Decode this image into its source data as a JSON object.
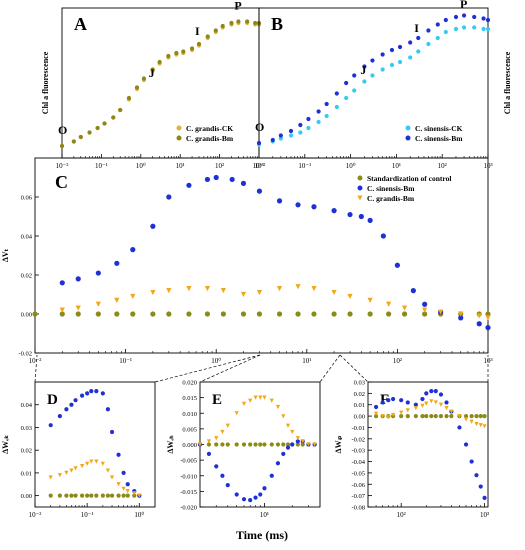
{
  "figure": {
    "x_label": "Time (ms)",
    "colors": {
      "grandis_ck": "#e0b23c",
      "grandis_bm": "#8f8616",
      "sinensis_ck": "#33ccf2",
      "sinensis_bm": "#1f30d6",
      "control": "#8b8b16",
      "grandis_bm_delta": "#f0a818",
      "sinensis_bm_delta": "#1f30d6"
    }
  },
  "chart_data": [
    {
      "id": "A",
      "type": "scatter",
      "panel_label": "A",
      "title": "",
      "xlabel": "",
      "ylabel": "Chl a fluorescence",
      "xscale": "log",
      "xlim": [
        0.01,
        1000
      ],
      "xticks": [
        0.01,
        0.1,
        1,
        10,
        100,
        1000
      ],
      "xtick_labels": [
        "10⁻²",
        "10⁻¹",
        "10⁰",
        "10¹",
        "10²",
        "10³"
      ],
      "show_yticks": false,
      "ylim": [
        0,
        100
      ],
      "legend": "bottom-right",
      "phases": [
        {
          "label": "O",
          "x": 0.01,
          "y": 12
        },
        {
          "label": "J",
          "x": 2,
          "y": 50
        },
        {
          "label": "I",
          "x": 30,
          "y": 78
        },
        {
          "label": "P",
          "x": 300,
          "y": 95
        }
      ],
      "series": [
        {
          "name": "C. grandis-CK",
          "color_key": "grandis_ck",
          "x": [
            0.01,
            0.02,
            0.03,
            0.05,
            0.08,
            0.12,
            0.2,
            0.3,
            0.5,
            0.8,
            1.2,
            2,
            3,
            5,
            8,
            12,
            20,
            30,
            50,
            80,
            120,
            200,
            300,
            500,
            800,
            1000
          ],
          "y": [
            8,
            11,
            14,
            17,
            20,
            23,
            27,
            32,
            39,
            46,
            52,
            58,
            63,
            67,
            69,
            70,
            72,
            75,
            80,
            84,
            87,
            89,
            90,
            90,
            89,
            89
          ]
        },
        {
          "name": "C. grandis-Bm",
          "color_key": "grandis_bm",
          "x": [
            0.01,
            0.02,
            0.03,
            0.05,
            0.08,
            0.12,
            0.2,
            0.3,
            0.5,
            0.8,
            1.2,
            2,
            3,
            5,
            8,
            12,
            20,
            30,
            50,
            80,
            120,
            200,
            300,
            500,
            800,
            1000
          ],
          "y": [
            8,
            11,
            14,
            17,
            20,
            23,
            27,
            32,
            40,
            47,
            53,
            59,
            64,
            68,
            70,
            71,
            73,
            76,
            81,
            85,
            88,
            90,
            91,
            91,
            90,
            90
          ]
        }
      ]
    },
    {
      "id": "B",
      "type": "scatter",
      "panel_label": "B",
      "title": "",
      "xlabel": "",
      "ylabel": "Chl a fluorescence",
      "xscale": "log",
      "xlim": [
        0.01,
        1000
      ],
      "xticks": [
        0.01,
        0.1,
        1,
        10,
        100,
        1000
      ],
      "xtick_labels": [
        "10⁻²",
        "10⁻¹",
        "10⁰",
        "10¹",
        "10²",
        "10³"
      ],
      "show_yticks": false,
      "ylim": [
        0,
        100
      ],
      "legend": "bottom-right",
      "phases": [
        {
          "label": "O",
          "x": 0.01,
          "y": 14
        },
        {
          "label": "J",
          "x": 2,
          "y": 52
        },
        {
          "label": "I",
          "x": 30,
          "y": 80
        },
        {
          "label": "P",
          "x": 300,
          "y": 96
        }
      ],
      "series": [
        {
          "name": "C. sinensis-CK",
          "color_key": "sinensis_ck",
          "x": [
            0.01,
            0.02,
            0.03,
            0.05,
            0.08,
            0.12,
            0.2,
            0.3,
            0.5,
            0.8,
            1.2,
            2,
            3,
            5,
            8,
            12,
            20,
            30,
            50,
            80,
            120,
            200,
            300,
            500,
            800,
            1000
          ],
          "y": [
            9,
            11,
            13,
            15,
            17,
            20,
            24,
            28,
            34,
            40,
            45,
            51,
            55,
            59,
            62,
            64,
            67,
            71,
            76,
            80,
            84,
            86,
            87,
            87,
            86,
            86
          ]
        },
        {
          "name": "C. sinensis-Bm",
          "color_key": "sinensis_bm",
          "x": [
            0.01,
            0.02,
            0.03,
            0.05,
            0.08,
            0.12,
            0.2,
            0.3,
            0.5,
            0.8,
            1.2,
            2,
            3,
            5,
            8,
            12,
            20,
            30,
            50,
            80,
            120,
            200,
            300,
            500,
            800,
            1000
          ],
          "y": [
            10,
            12,
            15,
            18,
            22,
            26,
            31,
            36,
            43,
            50,
            55,
            61,
            65,
            69,
            72,
            74,
            77,
            80,
            85,
            89,
            92,
            94,
            95,
            94,
            93,
            92
          ]
        }
      ]
    },
    {
      "id": "C",
      "type": "scatter",
      "panel_label": "C",
      "title": "",
      "xlabel": "",
      "ylabel": "ΔVₜ",
      "xscale": "log",
      "xlim": [
        0.01,
        1000
      ],
      "xticks": [
        0.01,
        0.1,
        1,
        10,
        100,
        1000
      ],
      "xtick_labels": [
        "10⁻²",
        "10⁻¹",
        "10⁰",
        "10¹",
        "10²",
        "10³"
      ],
      "ylim": [
        -0.02,
        0.08
      ],
      "yticks": [
        -0.02,
        0.0,
        0.02,
        0.04,
        0.06
      ],
      "ytick_labels": [
        "-0.02",
        "0.00",
        "0.02",
        "0.04",
        "0.06"
      ],
      "legend": "top-right",
      "series": [
        {
          "name": "Standardization of control",
          "color_key": "control",
          "x": [
            0.01,
            0.02,
            0.03,
            0.05,
            0.08,
            0.12,
            0.2,
            0.3,
            0.5,
            0.8,
            1.2,
            2,
            3,
            5,
            8,
            12,
            20,
            30,
            50,
            80,
            120,
            200,
            300,
            500,
            800,
            1000
          ],
          "y": [
            0,
            0,
            0,
            0,
            0,
            0,
            0,
            0,
            0,
            0,
            0,
            0,
            0,
            0,
            0,
            0,
            0,
            0,
            0,
            0,
            0,
            0,
            0,
            0,
            0,
            0
          ]
        },
        {
          "name": "C. sinensis-Bm",
          "color_key": "sinensis_bm_delta",
          "x": [
            0.02,
            0.03,
            0.05,
            0.08,
            0.12,
            0.2,
            0.3,
            0.5,
            0.8,
            1.0,
            1.5,
            2,
            3,
            5,
            8,
            12,
            20,
            30,
            40,
            50,
            70,
            100,
            150,
            200,
            300,
            500,
            800,
            1000
          ],
          "y": [
            0.016,
            0.018,
            0.021,
            0.026,
            0.033,
            0.045,
            0.06,
            0.066,
            0.069,
            0.07,
            0.069,
            0.067,
            0.063,
            0.058,
            0.056,
            0.055,
            0.053,
            0.051,
            0.05,
            0.048,
            0.04,
            0.025,
            0.012,
            0.005,
            0.001,
            -0.002,
            -0.005,
            -0.007
          ]
        },
        {
          "name": "C. grandis-Bm",
          "color_key": "grandis_bm_delta",
          "x": [
            0.02,
            0.03,
            0.05,
            0.08,
            0.12,
            0.2,
            0.3,
            0.5,
            0.8,
            1.2,
            2,
            3,
            5,
            8,
            12,
            20,
            30,
            50,
            80,
            120,
            200,
            300,
            500,
            800,
            1000
          ],
          "y": [
            0.002,
            0.003,
            0.005,
            0.007,
            0.009,
            0.011,
            0.012,
            0.013,
            0.013,
            0.012,
            0.01,
            0.011,
            0.013,
            0.014,
            0.013,
            0.011,
            0.009,
            0.007,
            0.005,
            0.003,
            0.002,
            0.001,
            0.0,
            -0.001,
            -0.002
          ]
        }
      ]
    },
    {
      "id": "D",
      "type": "scatter",
      "panel_label": "D",
      "title": "",
      "xlabel": "",
      "ylabel": "ΔWₒₖ",
      "xscale": "log",
      "xlim": [
        0.01,
        2
      ],
      "xticks": [
        0.01,
        0.1,
        1
      ],
      "xtick_labels": [
        "10⁻²",
        "10⁻¹",
        "10⁰"
      ],
      "ylim": [
        -0.005,
        0.05
      ],
      "yticks": [
        0.0,
        0.01,
        0.02,
        0.03,
        0.04
      ],
      "ytick_labels": [
        "0.00",
        "0.01",
        "0.02",
        "0.03",
        "0.04"
      ],
      "series": [
        {
          "name": "Standardization of control",
          "color_key": "control",
          "x": [
            0.02,
            0.03,
            0.04,
            0.05,
            0.06,
            0.08,
            0.1,
            0.12,
            0.15,
            0.2,
            0.25,
            0.3,
            0.4,
            0.5,
            0.6,
            0.8,
            1.0
          ],
          "y": [
            0,
            0,
            0,
            0,
            0,
            0,
            0,
            0,
            0,
            0,
            0,
            0,
            0,
            0,
            0,
            0,
            0
          ]
        },
        {
          "name": "C. sinensis-Bm",
          "color_key": "sinensis_bm_delta",
          "x": [
            0.02,
            0.03,
            0.04,
            0.05,
            0.06,
            0.08,
            0.1,
            0.12,
            0.15,
            0.2,
            0.25,
            0.3,
            0.4,
            0.5,
            0.6,
            0.8,
            1.0
          ],
          "y": [
            0.031,
            0.035,
            0.038,
            0.04,
            0.042,
            0.044,
            0.045,
            0.046,
            0.046,
            0.045,
            0.038,
            0.028,
            0.018,
            0.01,
            0.005,
            0.002,
            0.0
          ]
        },
        {
          "name": "C. grandis-Bm",
          "color_key": "grandis_bm_delta",
          "x": [
            0.02,
            0.03,
            0.04,
            0.05,
            0.06,
            0.08,
            0.1,
            0.12,
            0.15,
            0.2,
            0.25,
            0.3,
            0.4,
            0.5,
            0.6,
            0.8,
            1.0
          ],
          "y": [
            0.008,
            0.009,
            0.01,
            0.011,
            0.012,
            0.013,
            0.014,
            0.015,
            0.015,
            0.014,
            0.011,
            0.008,
            0.005,
            0.003,
            0.002,
            0.001,
            0.0
          ]
        }
      ]
    },
    {
      "id": "E",
      "type": "scatter",
      "panel_label": "E",
      "title": "",
      "xlabel": "",
      "ylabel": "ΔWₑₕ",
      "xscale": "log",
      "xlim": [
        2,
        40
      ],
      "xticks": [
        10
      ],
      "xtick_labels": [
        "10¹"
      ],
      "ylim": [
        -0.02,
        0.02
      ],
      "yticks": [
        -0.02,
        -0.015,
        -0.01,
        -0.005,
        0.0,
        0.005,
        0.01,
        0.015,
        0.02
      ],
      "ytick_labels": [
        "-0.020",
        "-0.015",
        "-0.010",
        "-0.005",
        "0.000",
        "0.005",
        "0.010",
        "0.015",
        "0.020"
      ],
      "series": [
        {
          "name": "Standardization of control",
          "color_key": "control",
          "x": [
            2,
            2.5,
            3,
            3.5,
            4,
            5,
            6,
            7,
            8,
            9,
            10,
            12,
            14,
            16,
            18,
            20,
            23,
            26,
            30,
            35
          ],
          "y": [
            0,
            0,
            0,
            0,
            0,
            0,
            0,
            0,
            0,
            0,
            0,
            0,
            0,
            0,
            0,
            0,
            0,
            0,
            0,
            0
          ]
        },
        {
          "name": "C. sinensis-Bm",
          "color_key": "sinensis_bm_delta",
          "x": [
            2,
            2.5,
            3,
            3.5,
            4,
            5,
            6,
            7,
            8,
            9,
            10,
            12,
            14,
            16,
            18,
            20,
            23,
            26,
            30,
            35
          ],
          "y": [
            0.0,
            -0.003,
            -0.007,
            -0.01,
            -0.013,
            -0.016,
            -0.0175,
            -0.0178,
            -0.017,
            -0.016,
            -0.014,
            -0.01,
            -0.006,
            -0.003,
            -0.001,
            0.0,
            0.001,
            0.001,
            0.0,
            0.0
          ]
        },
        {
          "name": "C. grandis-Bm",
          "color_key": "grandis_bm_delta",
          "x": [
            2,
            2.5,
            3,
            3.5,
            4,
            5,
            6,
            7,
            8,
            9,
            10,
            12,
            14,
            16,
            18,
            20,
            23,
            26,
            30,
            35
          ],
          "y": [
            0.0,
            0.001,
            0.002,
            0.004,
            0.006,
            0.01,
            0.013,
            0.014,
            0.015,
            0.015,
            0.015,
            0.014,
            0.012,
            0.009,
            0.006,
            0.004,
            0.002,
            0.001,
            0.0,
            0.0
          ]
        }
      ]
    },
    {
      "id": "F",
      "type": "scatter",
      "panel_label": "F",
      "title": "",
      "xlabel": "",
      "ylabel": "ΔWᵢₚ",
      "xscale": "log",
      "xlim": [
        40,
        1100
      ],
      "xticks": [
        100,
        1000
      ],
      "xtick_labels": [
        "10²",
        "10³"
      ],
      "ylim": [
        -0.08,
        0.03
      ],
      "yticks": [
        -0.08,
        -0.07,
        -0.06,
        -0.05,
        -0.04,
        -0.03,
        -0.02,
        -0.01,
        0.0,
        0.01,
        0.02,
        0.03
      ],
      "ytick_labels": [
        "-0.08",
        "-0.07",
        "-0.06",
        "-0.05",
        "-0.04",
        "-0.03",
        "-0.02",
        "-0.01",
        "0.00",
        "0.01",
        "0.02",
        "0.03"
      ],
      "series": [
        {
          "name": "Standardization of control",
          "color_key": "control",
          "x": [
            50,
            60,
            70,
            80,
            100,
            120,
            150,
            180,
            200,
            230,
            260,
            300,
            350,
            400,
            500,
            600,
            700,
            800,
            900,
            1000
          ],
          "y": [
            0,
            0,
            0,
            0,
            0,
            0,
            0,
            0,
            0,
            0,
            0,
            0,
            0,
            0,
            0,
            0,
            0,
            0,
            0,
            0
          ]
        },
        {
          "name": "C. sinensis-Bm",
          "color_key": "sinensis_bm_delta",
          "x": [
            50,
            60,
            70,
            80,
            100,
            120,
            150,
            180,
            200,
            230,
            260,
            300,
            350,
            400,
            500,
            600,
            700,
            800,
            900,
            1000
          ],
          "y": [
            0.008,
            0.012,
            0.014,
            0.015,
            0.014,
            0.012,
            0.01,
            0.015,
            0.02,
            0.022,
            0.022,
            0.019,
            0.012,
            0.004,
            -0.01,
            -0.025,
            -0.04,
            -0.052,
            -0.062,
            -0.072
          ]
        },
        {
          "name": "C. grandis-Bm",
          "color_key": "grandis_bm_delta",
          "x": [
            50,
            60,
            70,
            80,
            100,
            120,
            150,
            180,
            200,
            230,
            260,
            300,
            350,
            400,
            500,
            600,
            700,
            800,
            900,
            1000
          ],
          "y": [
            0.002,
            0.0,
            -0.001,
            0.001,
            0.003,
            0.005,
            0.007,
            0.009,
            0.011,
            0.013,
            0.012,
            0.01,
            0.007,
            0.004,
            0.0,
            -0.003,
            -0.005,
            -0.007,
            -0.008,
            -0.009
          ]
        }
      ]
    }
  ]
}
